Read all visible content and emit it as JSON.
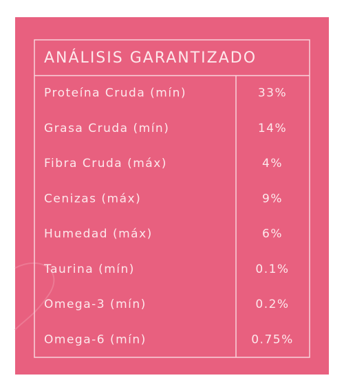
{
  "table": {
    "title": "ANÁLISIS GARANTIZADO",
    "rows": [
      [
        "Proteína Cruda (mín)",
        "33%"
      ],
      [
        "Grasa Cruda (mín)",
        "14%"
      ],
      [
        "Fibra Cruda (máx)",
        "4%"
      ],
      [
        "Cenizas (máx)",
        "9%"
      ],
      [
        "Humedad (máx)",
        "6%"
      ],
      [
        "Taurina (mín)",
        "0.1%"
      ],
      [
        "Omega-3 (mín)",
        "0.2%"
      ],
      [
        "Omega-6 (mín)",
        "0.75%"
      ]
    ]
  }
}
